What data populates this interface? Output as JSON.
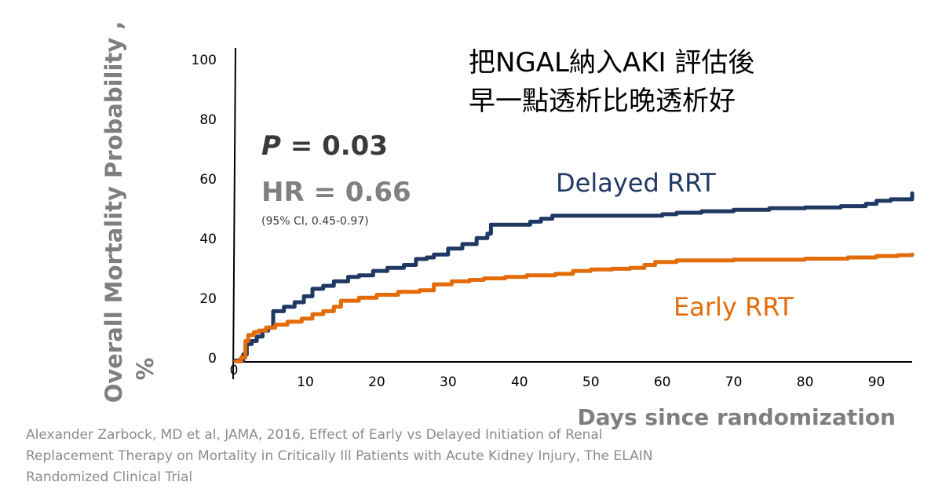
{
  "chart_data": {
    "type": "line",
    "title_lines": [
      "把NGAL納入AKI 評估後",
      "早一點透析比晚透析好"
    ],
    "ylabel_line1": "Overall Mortality Probability ,",
    "ylabel_line2": "%",
    "xlabel": "Days since randomization",
    "ylim": [
      0,
      100
    ],
    "xlim": [
      0,
      95
    ],
    "y_ticks": [
      {
        "value": 0,
        "label": "0"
      },
      {
        "value": 20,
        "label": "20"
      },
      {
        "value": 40,
        "label": "40"
      },
      {
        "value": 60,
        "label": "60"
      },
      {
        "value": 80,
        "label": "80"
      },
      {
        "value": 100,
        "label": "100"
      }
    ],
    "x_ticks": [
      {
        "value": 0,
        "label": "0"
      },
      {
        "value": 10,
        "label": "10"
      },
      {
        "value": 20,
        "label": "20"
      },
      {
        "value": 30,
        "label": "30"
      },
      {
        "value": 40,
        "label": "40"
      },
      {
        "value": 50,
        "label": "50"
      },
      {
        "value": 60,
        "label": "60"
      },
      {
        "value": 70,
        "label": "70"
      },
      {
        "value": 80,
        "label": "80"
      },
      {
        "value": 90,
        "label": "90"
      }
    ],
    "p_prefix": "P",
    "p_suffix": " = 0.03",
    "hr_text": "HR = 0.66",
    "ci_text": "(95% CI, 0.45-0.97)",
    "series": [
      {
        "name": "Delayed RRT",
        "color": "#1f3864",
        "x": [
          0.2,
          1.0,
          1.3,
          1.8,
          2.5,
          3.2,
          4.0,
          4.8,
          5.5,
          7.0,
          8.5,
          9.8,
          11.0,
          12.5,
          14.0,
          16.0,
          17.5,
          19.5,
          21.5,
          23.8,
          25.5,
          27.0,
          28.0,
          30.0,
          32.0,
          34.0,
          35.5,
          36.0,
          38.0,
          40.5,
          41.5,
          43.0,
          44.6,
          46.5,
          52.0,
          56.0,
          57.0,
          58.6,
          60.0,
          62.0,
          65.5,
          70.0,
          75.0,
          80.0,
          85.0,
          88.5,
          90.0,
          92.0,
          95.0
        ],
        "y": [
          0.5,
          0.5,
          2.5,
          6.0,
          7.0,
          8.5,
          10.5,
          11.5,
          17.0,
          18.5,
          20.0,
          22.0,
          24.5,
          25.5,
          27.0,
          28.5,
          29.0,
          30.5,
          31.5,
          32.5,
          34.5,
          35.0,
          36.0,
          38.0,
          39.5,
          41.5,
          43.0,
          46.0,
          46.0,
          46.0,
          47.0,
          48.0,
          49.0,
          49.0,
          49.0,
          49.0,
          49.0,
          49.0,
          49.5,
          50.0,
          50.5,
          51.0,
          51.5,
          51.8,
          52.2,
          53.0,
          54.0,
          54.5,
          56.5
        ]
      },
      {
        "name": "Early RRT",
        "color": "#e36c09",
        "x": [
          0.2,
          1.0,
          1.6,
          2.0,
          2.8,
          3.5,
          4.5,
          5.8,
          7.5,
          9.5,
          11.0,
          12.5,
          14.0,
          15.0,
          17.5,
          20.0,
          23.0,
          26.0,
          28.0,
          30.5,
          33.0,
          35.0,
          38.0,
          41.0,
          45.0,
          47.5,
          50.0,
          53.0,
          55.5,
          57.5,
          59.0,
          62.0,
          70.0,
          80.0,
          86.0,
          90.0,
          93.0,
          95.0
        ],
        "y": [
          0.2,
          1.5,
          7.0,
          9.0,
          10.0,
          10.5,
          11.5,
          12.5,
          13.5,
          14.5,
          16.0,
          17.0,
          18.5,
          20.5,
          21.5,
          22.5,
          23.5,
          24.0,
          26.0,
          27.0,
          27.5,
          28.0,
          28.5,
          29.0,
          29.5,
          30.5,
          31.0,
          31.2,
          31.5,
          32.5,
          33.5,
          34.0,
          34.3,
          34.6,
          35.0,
          35.5,
          35.8,
          36.0
        ]
      }
    ]
  },
  "citation": [
    "Alexander Zarbock, MD et al, JAMA, 2016, Effect of Early vs Delayed Initiation of Renal",
    " Replacement Therapy on Mortality in Critically Ill Patients with Acute Kidney Injury, The ELAIN",
    " Randomized Clinical Trial"
  ]
}
